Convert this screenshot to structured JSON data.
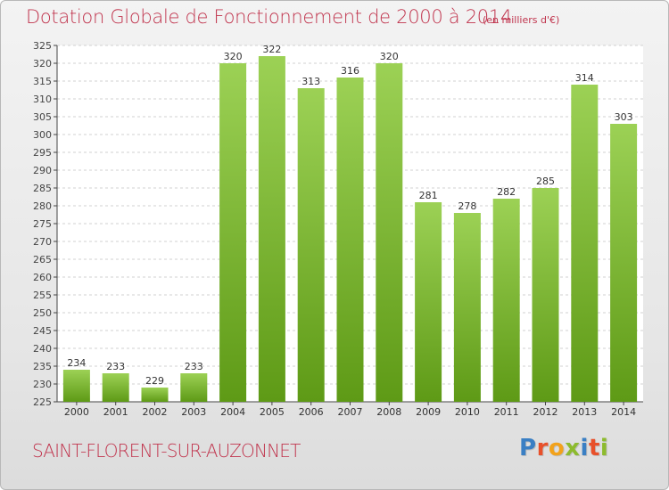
{
  "title": "Dotation Globale de Fonctionnement de 2000 à 2014",
  "subtitle": "(en milliers d'€)",
  "commune": "SAINT-FLORENT-SUR-AUZONNET",
  "logo": {
    "text": "Proxiti",
    "letters": [
      {
        "char": "P",
        "color": "#3a7fc4"
      },
      {
        "char": "r",
        "color": "#e8502a"
      },
      {
        "char": "o",
        "color": "#f2a21b"
      },
      {
        "char": "x",
        "color": "#8dbb2e"
      },
      {
        "char": "i",
        "color": "#3a7fc4"
      },
      {
        "char": "t",
        "color": "#e8502a"
      },
      {
        "char": "i",
        "color": "#8dbb2e"
      }
    ]
  },
  "colors": {
    "accent": "#c0344d",
    "bar_top": "#9cd155",
    "bar_bottom": "#5e9a16",
    "plot_bg": "#ffffff",
    "grid": "#d0d0d0"
  },
  "chart_data": {
    "type": "bar",
    "categories": [
      "2000",
      "2001",
      "2002",
      "2003",
      "2004",
      "2005",
      "2006",
      "2007",
      "2008",
      "2009",
      "2010",
      "2011",
      "2012",
      "2013",
      "2014"
    ],
    "values": [
      234,
      233,
      229,
      233,
      320,
      322,
      313,
      316,
      320,
      281,
      278,
      282,
      285,
      314,
      303
    ],
    "ylim": [
      225,
      325
    ],
    "yticks": [
      225,
      230,
      235,
      240,
      245,
      250,
      255,
      260,
      265,
      270,
      275,
      280,
      285,
      290,
      295,
      300,
      305,
      310,
      315,
      320,
      325
    ],
    "grid": true,
    "data_labels": true
  }
}
